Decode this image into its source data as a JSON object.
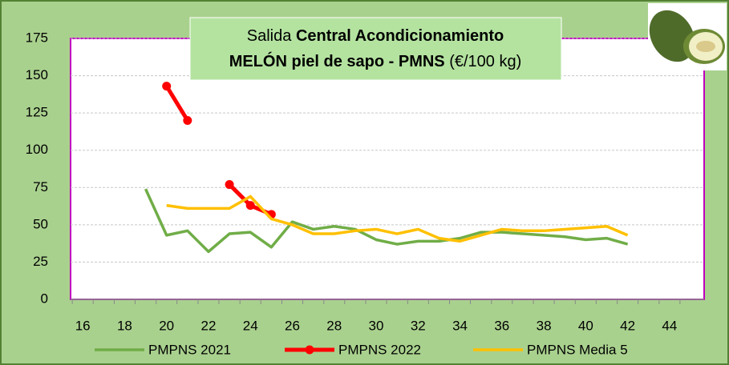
{
  "chart_data": {
    "type": "line",
    "title_parts": [
      "Salida",
      "Central Acondicionamiento",
      "MELÓN piel de sapo - PMNS",
      "(€/100 kg)"
    ],
    "x": [
      19,
      20,
      21,
      22,
      23,
      24,
      25,
      26,
      27,
      28,
      29,
      30,
      31,
      32,
      33,
      34,
      35,
      36,
      37,
      38,
      39,
      40,
      41,
      42
    ],
    "series": [
      {
        "name": "PMPNS 2021",
        "color": "#70ad47",
        "marker": false,
        "values": [
          74,
          43,
          46,
          32,
          44,
          45,
          35,
          52,
          47,
          49,
          47,
          40,
          37,
          39,
          39,
          41,
          45,
          45,
          44,
          43,
          42,
          40,
          41,
          37
        ]
      },
      {
        "name": "PMPNS 2022",
        "color": "#ff0000",
        "marker": true,
        "values": [
          null,
          143,
          120,
          null,
          77,
          63,
          57,
          null,
          null,
          null,
          null,
          null,
          null,
          null,
          null,
          null,
          null,
          null,
          null,
          null,
          null,
          null,
          null,
          null
        ]
      },
      {
        "name": "PMPNS Media 5",
        "color": "#ffc000",
        "marker": false,
        "values": [
          null,
          63,
          61,
          61,
          61,
          69,
          54,
          50,
          44,
          44,
          46,
          47,
          44,
          47,
          41,
          39,
          43,
          47,
          46,
          46,
          47,
          48,
          49,
          43
        ]
      }
    ],
    "xlim": [
      15.42,
      45.65
    ],
    "xticks": [
      16,
      18,
      20,
      22,
      24,
      26,
      28,
      30,
      32,
      34,
      36,
      38,
      40,
      42,
      44
    ],
    "ylim": [
      0,
      175
    ],
    "yticks": [
      0,
      25,
      50,
      75,
      100,
      125,
      150,
      175
    ],
    "grid": true,
    "legend": "bottom"
  }
}
